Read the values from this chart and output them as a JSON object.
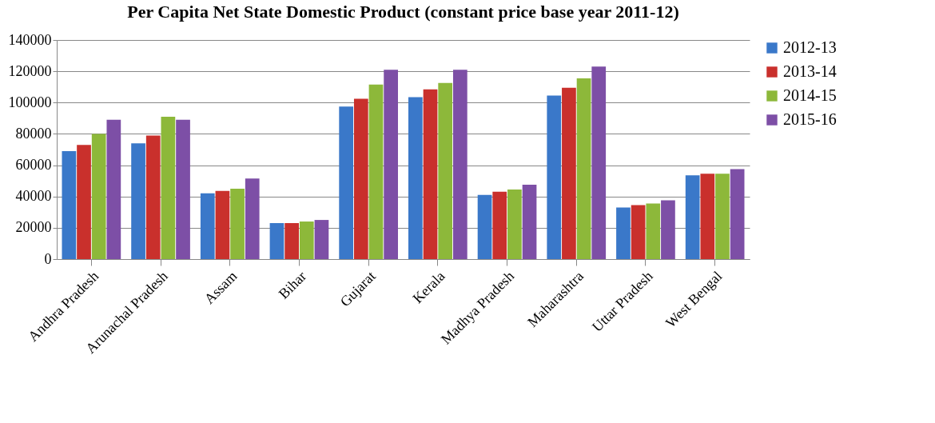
{
  "chart_data": {
    "type": "bar",
    "title": "Per Capita Net State Domestic Product (constant price base year 2011-12)",
    "categories": [
      "Andhra Pradesh",
      "Arunachal Pradesh",
      "Assam",
      "Bihar",
      "Gujarat",
      "Kerala",
      "Madhya Pradesh",
      "Maharashtra",
      "Uttar Pradesh",
      "West Bengal"
    ],
    "series": [
      {
        "name": "2012-13",
        "color": "#3a78c9",
        "values": [
          69000,
          74000,
          42000,
          23000,
          97500,
          103500,
          41000,
          104500,
          33000,
          53500
        ]
      },
      {
        "name": "2013-14",
        "color": "#c9302c",
        "values": [
          73000,
          79000,
          43500,
          23000,
          102500,
          108500,
          43000,
          109500,
          34500,
          54500
        ]
      },
      {
        "name": "2014-15",
        "color": "#8db83a",
        "values": [
          80000,
          91000,
          45000,
          24000,
          111500,
          112500,
          44500,
          115500,
          35500,
          54500
        ]
      },
      {
        "name": "2015-16",
        "color": "#7d4fa6",
        "values": [
          89000,
          89000,
          51500,
          25000,
          121000,
          121000,
          47500,
          123000,
          37500,
          57500
        ]
      }
    ],
    "ylim": [
      0,
      140000
    ],
    "yticks": [
      0,
      20000,
      40000,
      60000,
      80000,
      100000,
      120000,
      140000
    ],
    "grid": "y",
    "legend": "right"
  }
}
